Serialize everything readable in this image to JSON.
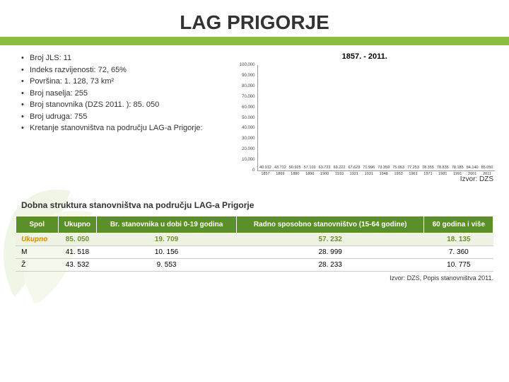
{
  "title": "LAG PRIGORJE",
  "bullets": [
    "Broj JLS: 11",
    "Indeks razvijenosti: 72, 65%",
    "Površina: 1. 128, 73 km²",
    "Broj naselja: 255",
    "Broj stanovnika (DZS 2011. ): 85. 050",
    "Broj udruga: 755",
    "Kretanje stanovništva na području LAG-a Prigorje:"
  ],
  "chart": {
    "title": "1857. - 2011.",
    "ymax": 100000,
    "ytick_step": 10000,
    "yticks": [
      "0",
      "10.000",
      "20.000",
      "30.000",
      "40.000",
      "50.000",
      "60.000",
      "70.000",
      "80.000",
      "90.000",
      "100.000"
    ],
    "bar_color": "#8bbd3e",
    "grid_color": "#e0e0e0",
    "years": [
      "1857",
      "1869",
      "1880",
      "1890",
      "1900",
      "1910",
      "1921",
      "1931",
      "1948",
      "1953",
      "1961",
      "1971",
      "1981",
      "1991",
      "2001",
      "2011"
    ],
    "values": [
      40912,
      43712,
      50925,
      57103,
      63723,
      69222,
      67623,
      71996,
      73359,
      75053,
      77253,
      78355,
      78835,
      78185,
      84140,
      85050
    ],
    "value_labels": [
      "40.912",
      "43.712",
      "50.925",
      "57.103",
      "63.723",
      "69.222",
      "67.623",
      "71.996",
      "73.359",
      "75.053",
      "77.253",
      "78.355",
      "78.835",
      "78.185",
      "84.140",
      "85.050"
    ]
  },
  "source1": "Izvor: DZS",
  "table_title": "Dobna struktura stanovništva na području LAG-a Prigorje",
  "table": {
    "columns": [
      "Spol",
      "Ukupno",
      "Br. stanovnika u dobi 0-19 godina",
      "Radno sposobno stanovništvo (15-64 godine)",
      "60  godina i više"
    ],
    "rows": [
      [
        "Ukupno",
        "85. 050",
        "19. 709",
        "57. 232",
        "18. 135"
      ],
      [
        "M",
        "41. 518",
        "10. 156",
        "28. 999",
        "7. 360"
      ],
      [
        "Ž",
        "43. 532",
        "9. 553",
        "28. 233",
        "10. 775"
      ]
    ]
  },
  "source2": "Izvor: DZS, Popis stanovništva 2011."
}
